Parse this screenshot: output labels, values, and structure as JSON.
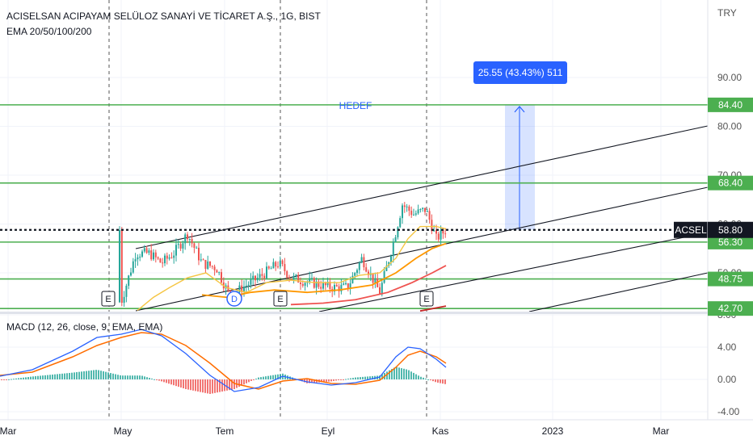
{
  "header": {
    "title": "ACISELSAN ACIPAYAM SELÜLOZ SANAYİ VE TİCARET A.Ş., 1G, BIST",
    "ema": "EMA 20/50/100/200",
    "macd": "MACD (12, 26, close, 9, EMA, EMA)"
  },
  "price_axis": {
    "currency": "TRY",
    "ticks": [
      "90.00",
      "80.00",
      "70.00",
      "60.00",
      "50.00"
    ],
    "macd_ticks": [
      "8.00",
      "4.00",
      "0.00",
      "-4.00"
    ]
  },
  "time_axis": {
    "labels": [
      "Mar",
      "May",
      "Tem",
      "Eyl",
      "Kas",
      "2023",
      "Mar"
    ]
  },
  "levels": [
    {
      "value": 84.4,
      "label": "84.40"
    },
    {
      "value": 68.4,
      "label": "68.40"
    },
    {
      "value": 56.3,
      "label": "56.30"
    },
    {
      "value": 48.75,
      "label": "48.75"
    },
    {
      "value": 42.7,
      "label": "42.70"
    }
  ],
  "last_price": {
    "symbol": "ACSEL",
    "value": 58.8,
    "label": "58.80"
  },
  "target": {
    "text": "HEDEF",
    "measure": "25.55 (43.43%) 511"
  },
  "markers": [
    "E",
    "D",
    "E",
    "E"
  ],
  "colors": {
    "up": "#26a69a",
    "down": "#ef5350",
    "level": "#4caf50",
    "measure": "#2962ff",
    "macd": "#2962ff",
    "signal": "#ff6d00"
  },
  "chart_data": [
    {
      "type": "candlestick",
      "title": "ACISELSAN ACIPAYAM SELÜLOZ SANAYİ VE TİCARET A.Ş., 1G, BIST",
      "xlabel": "",
      "ylabel": "",
      "x_ticks": [
        "Mar",
        "May",
        "Tem",
        "Eyl",
        "Kas",
        "2023",
        "Mar"
      ],
      "ylim": [
        42,
        97
      ],
      "series": [
        {
          "name": "price (approx. close)",
          "x": [
            "May",
            "Tem",
            "Eyl",
            "Kas"
          ],
          "values": [
            55,
            43,
            45,
            58.8
          ]
        },
        {
          "name": "EMA 20",
          "x": [
            "May",
            "Tem",
            "Eyl",
            "Kas"
          ],
          "values": [
            46,
            52,
            48,
            60
          ]
        },
        {
          "name": "EMA 50",
          "x": [
            "Tem",
            "Eyl",
            "Kas"
          ],
          "values": [
            45,
            47,
            56
          ]
        },
        {
          "name": "EMA 100",
          "x": [
            "Eyl",
            "Kas"
          ],
          "values": [
            44,
            51
          ]
        }
      ],
      "grid": true
    },
    {
      "type": "line",
      "title": "MACD (12, 26, close, 9, EMA, EMA)",
      "ylim": [
        -4,
        8
      ],
      "y_ticks": [
        "8.00",
        "4.00",
        "0.00",
        "-4.00"
      ],
      "series": [
        {
          "name": "MACD",
          "x": [
            "Mar",
            "May",
            "Tem",
            "Eyl",
            "Kas"
          ],
          "values": [
            0.5,
            6.0,
            -1.5,
            -0.5,
            1.5
          ]
        },
        {
          "name": "Signal",
          "x": [
            "Mar",
            "May",
            "Tem",
            "Eyl",
            "Kas"
          ],
          "values": [
            0.3,
            5.5,
            -1.0,
            -0.2,
            2.0
          ]
        }
      ]
    }
  ]
}
